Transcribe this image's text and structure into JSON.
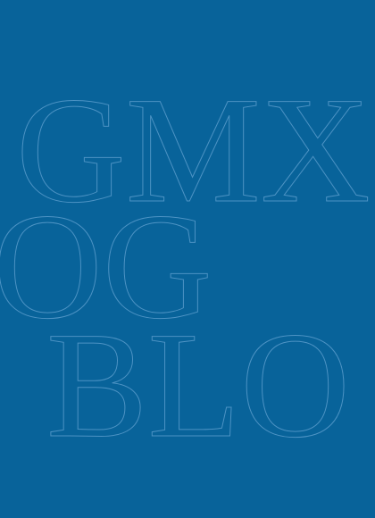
{
  "lines": [
    "GMX",
    "OG",
    "BLO"
  ]
}
